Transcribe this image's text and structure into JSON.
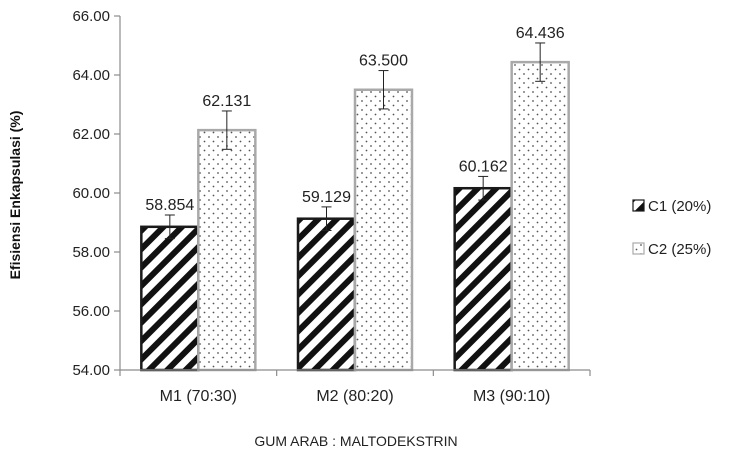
{
  "chart_data": {
    "type": "bar",
    "categories": [
      "M1 (70:30)",
      "M2 (80:20)",
      "M3 (90:10)"
    ],
    "series": [
      {
        "name": "C1 (20%)",
        "values": [
          58.854,
          59.129,
          60.162
        ],
        "errors": [
          0.4,
          0.4,
          0.4
        ],
        "labels": [
          "58.854",
          "59.129",
          "60.162"
        ]
      },
      {
        "name": "C2 (25%)",
        "values": [
          62.131,
          63.5,
          64.436
        ],
        "errors": [
          0.65,
          0.65,
          0.65
        ],
        "labels": [
          "62.131",
          "63.500",
          "64.436"
        ]
      }
    ],
    "xlabel": "GUM ARAB : MALTODEKSTRIN",
    "ylabel": "Efisiensi Enkapsulasi (%)",
    "ylim": [
      54,
      66
    ],
    "yticks": [
      "54.00",
      "56.00",
      "58.00",
      "60.00",
      "62.00",
      "64.00",
      "66.00"
    ],
    "grid": false,
    "legend_position": "right",
    "colors": {
      "axis": "#8c8c8c",
      "bar_border": "#1a1a1a",
      "c2_border": "#a9a9a9",
      "hatch": "#111111",
      "dot": "#555555"
    }
  }
}
